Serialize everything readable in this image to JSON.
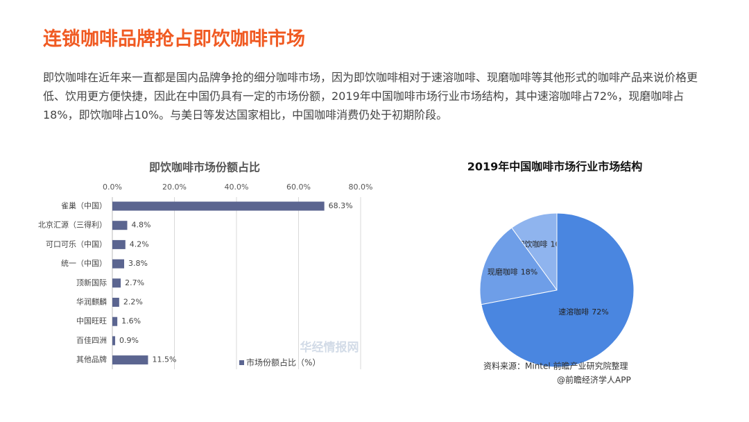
{
  "title": "连锁咖啡品牌抢占即饮咖啡市场",
  "body": "即饮咖啡在近年来一直都是国内品牌争抢的细分咖啡市场，因为即饮咖啡相对于速溶咖啡、现磨咖啡等其他形式的咖啡产品来说价格更低、饮用更方便快捷，因此在中国仍具有一定的市场份额，2019年中国咖啡市场行业市场结构，其中速溶咖啡占72%，现磨咖啡占18%，即饮咖啡占10%。与美日等发达国家相比，中国咖啡消费仍处于初期阶段。",
  "chart_data": [
    {
      "type": "hbar",
      "title": "即饮咖啡市场份额占比",
      "categories": [
        "雀巢（中国）",
        "北京汇源（三得利）",
        "可口可乐（中国）",
        "统一（中国）",
        "顶新国际",
        "华润麒麟",
        "中国旺旺",
        "百佳四洲",
        "其他品牌"
      ],
      "series": [
        {
          "name": "市场份额占比（%）",
          "color": "#5b6590",
          "values": [
            68.3,
            4.8,
            4.2,
            3.8,
            2.7,
            2.2,
            1.6,
            0.9,
            11.5
          ],
          "value_labels": [
            "68.3%",
            "4.8%",
            "4.2%",
            "3.8%",
            "2.7%",
            "2.2%",
            "1.6%",
            "0.9%",
            "11.5%"
          ]
        }
      ],
      "xlim": [
        0,
        80
      ],
      "xticks": [
        {
          "value": 0,
          "label": "0.0%"
        },
        {
          "value": 20,
          "label": "20.0%"
        },
        {
          "value": 40,
          "label": "40.0%"
        },
        {
          "value": 60,
          "label": "60.0%"
        },
        {
          "value": 80,
          "label": "80.0%"
        }
      ],
      "grid": true,
      "legend": "bottom",
      "watermark": "华经情报网"
    },
    {
      "type": "pie",
      "title": "2019年中国咖啡市场行业市场结构",
      "categories": [
        "即饮咖啡",
        "现磨咖啡",
        "速溶咖啡"
      ],
      "values": [
        10,
        18,
        72
      ],
      "value_labels": [
        "10%",
        "18%",
        "72%"
      ],
      "colors": [
        "#8fb4ee",
        "#6e9ee8",
        "#4a86e0"
      ],
      "source": "资料来源：Mintel 前瞻产业研究院整理",
      "credit": "@前瞻经济学人APP"
    }
  ]
}
